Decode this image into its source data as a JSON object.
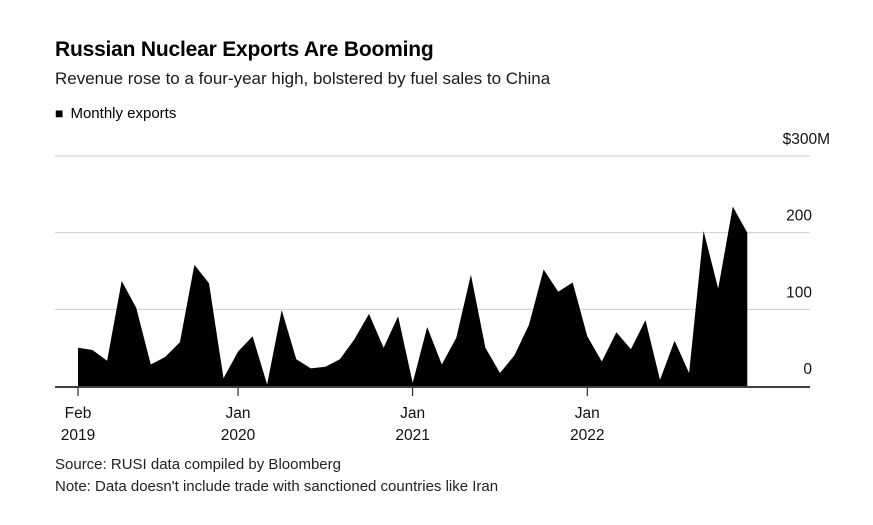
{
  "header": {
    "title": "Russian Nuclear Exports Are Booming",
    "subtitle": "Revenue rose to a four-year high, bolstered by fuel sales to China"
  },
  "legend": {
    "marker": "■",
    "label": "Monthly exports"
  },
  "footer": {
    "source": "Source: RUSI data compiled by Bloomberg",
    "note": "Note: Data doesn't include trade with sanctioned countries like Iran"
  },
  "colors": {
    "area": "#000000",
    "grid": "#cfcfcf",
    "axis": "#000000",
    "text": "#111111"
  },
  "chart_data": {
    "type": "area",
    "title": "Monthly exports",
    "xlabel": "",
    "ylabel": "$M",
    "unit": "$M",
    "ylim": [
      0,
      300
    ],
    "grid": true,
    "legend_position": "top-left",
    "y_ticks": [
      {
        "label": "$300M",
        "value": 300
      },
      {
        "label": "200",
        "value": 200
      },
      {
        "label": "100",
        "value": 100
      },
      {
        "label": "0",
        "value": 0
      }
    ],
    "x_ticks": [
      {
        "line1": "Feb",
        "line2": "2019",
        "month_index": 0
      },
      {
        "line1": "Jan",
        "line2": "2020",
        "month_index": 11
      },
      {
        "line1": "Jan",
        "line2": "2021",
        "month_index": 23
      },
      {
        "line1": "Jan",
        "line2": "2022",
        "month_index": 35
      }
    ],
    "months": [
      "2019-02",
      "2019-03",
      "2019-04",
      "2019-05",
      "2019-06",
      "2019-07",
      "2019-08",
      "2019-09",
      "2019-10",
      "2019-11",
      "2019-12",
      "2020-01",
      "2020-02",
      "2020-03",
      "2020-04",
      "2020-05",
      "2020-06",
      "2020-07",
      "2020-08",
      "2020-09",
      "2020-10",
      "2020-11",
      "2020-12",
      "2021-01",
      "2021-02",
      "2021-03",
      "2021-04",
      "2021-05",
      "2021-06",
      "2021-07",
      "2021-08",
      "2021-09",
      "2021-10",
      "2021-11",
      "2021-12",
      "2022-01",
      "2022-02",
      "2022-03",
      "2022-04",
      "2022-05",
      "2022-06",
      "2022-07",
      "2022-08",
      "2022-09",
      "2022-10",
      "2022-11",
      "2022-12"
    ],
    "values": [
      50,
      47,
      33,
      137,
      102,
      28,
      38,
      57,
      158,
      134,
      10,
      45,
      65,
      2,
      99,
      35,
      23,
      25,
      35,
      61,
      94,
      50,
      91,
      4,
      77,
      28,
      63,
      145,
      50,
      17,
      40,
      80,
      152,
      123,
      135,
      65,
      32,
      70,
      48,
      86,
      8,
      59,
      17,
      202,
      127,
      234,
      200
    ]
  }
}
